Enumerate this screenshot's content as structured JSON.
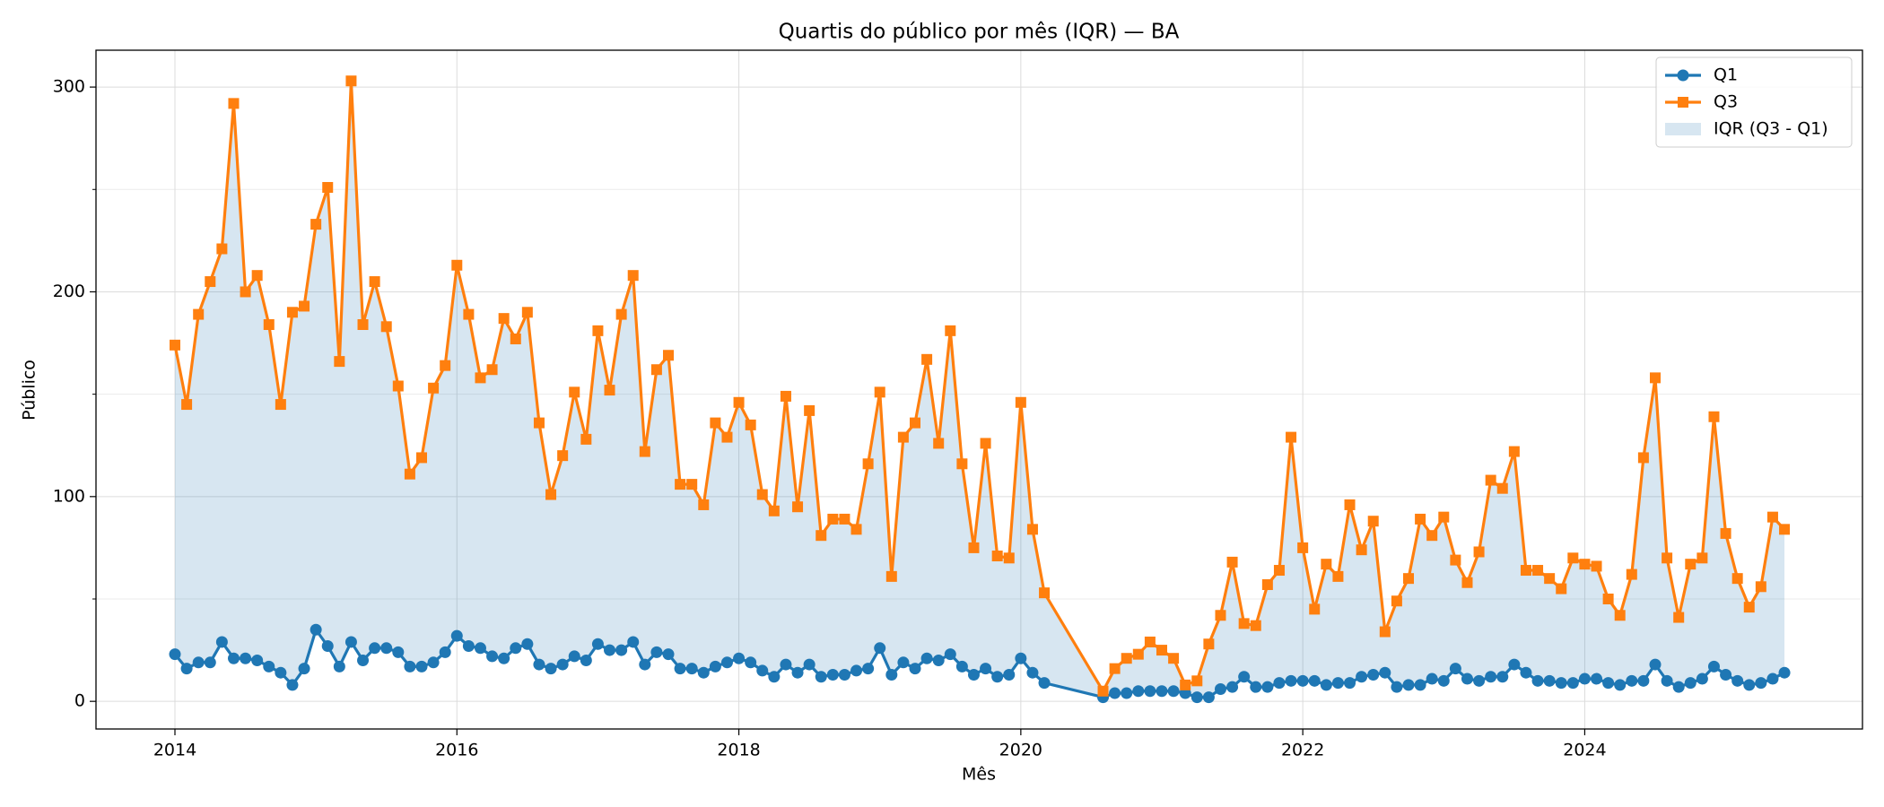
{
  "chart_data": {
    "type": "line",
    "title": "Quartis do público por mês (IQR) — BA",
    "xlabel": "Mês",
    "ylabel": "Público",
    "x": [
      "2014-01",
      "2014-02",
      "2014-03",
      "2014-04",
      "2014-05",
      "2014-06",
      "2014-07",
      "2014-08",
      "2014-09",
      "2014-10",
      "2014-11",
      "2014-12",
      "2015-01",
      "2015-02",
      "2015-03",
      "2015-04",
      "2015-05",
      "2015-06",
      "2015-07",
      "2015-08",
      "2015-09",
      "2015-10",
      "2015-11",
      "2015-12",
      "2016-01",
      "2016-02",
      "2016-03",
      "2016-04",
      "2016-05",
      "2016-06",
      "2016-07",
      "2016-08",
      "2016-09",
      "2016-10",
      "2016-11",
      "2016-12",
      "2017-01",
      "2017-02",
      "2017-03",
      "2017-04",
      "2017-05",
      "2017-06",
      "2017-07",
      "2017-08",
      "2017-09",
      "2017-10",
      "2017-11",
      "2017-12",
      "2018-01",
      "2018-02",
      "2018-03",
      "2018-04",
      "2018-05",
      "2018-06",
      "2018-07",
      "2018-08",
      "2018-09",
      "2018-10",
      "2018-11",
      "2018-12",
      "2019-01",
      "2019-02",
      "2019-03",
      "2019-04",
      "2019-05",
      "2019-06",
      "2019-07",
      "2019-08",
      "2019-09",
      "2019-10",
      "2019-11",
      "2019-12",
      "2020-01",
      "2020-02",
      "2020-03",
      "2020-08",
      "2020-09",
      "2020-10",
      "2020-11",
      "2020-12",
      "2021-01",
      "2021-02",
      "2021-03",
      "2021-04",
      "2021-05",
      "2021-06",
      "2021-07",
      "2021-08",
      "2021-09",
      "2021-10",
      "2021-11",
      "2021-12",
      "2022-01",
      "2022-02",
      "2022-03",
      "2022-04",
      "2022-05",
      "2022-06",
      "2022-07",
      "2022-08",
      "2022-09",
      "2022-10",
      "2022-11",
      "2022-12",
      "2023-01",
      "2023-02",
      "2023-03",
      "2023-04",
      "2023-05",
      "2023-06",
      "2023-07",
      "2023-08",
      "2023-09",
      "2023-10",
      "2023-11",
      "2023-12",
      "2024-01",
      "2024-02",
      "2024-03",
      "2024-04",
      "2024-05",
      "2024-06",
      "2024-07",
      "2024-08",
      "2024-09",
      "2024-10",
      "2024-11",
      "2024-12",
      "2025-01",
      "2025-02",
      "2025-03",
      "2025-04",
      "2025-05",
      "2025-06"
    ],
    "series": [
      {
        "name": "Q1",
        "color": "#1f77b4",
        "marker": "circle",
        "values": [
          23,
          16,
          19,
          19,
          29,
          21,
          21,
          20,
          17,
          14,
          8,
          16,
          35,
          27,
          17,
          29,
          20,
          26,
          26,
          24,
          17,
          17,
          19,
          24,
          32,
          27,
          26,
          22,
          21,
          26,
          28,
          18,
          16,
          18,
          22,
          20,
          28,
          25,
          25,
          29,
          18,
          24,
          23,
          16,
          16,
          14,
          17,
          19,
          21,
          19,
          15,
          12,
          18,
          14,
          18,
          12,
          13,
          13,
          15,
          16,
          26,
          13,
          19,
          16,
          21,
          20,
          23,
          17,
          13,
          16,
          12,
          13,
          21,
          14,
          9,
          2,
          4,
          4,
          5,
          5,
          5,
          5,
          4,
          2,
          2,
          6,
          7,
          12,
          7,
          7,
          9,
          10,
          10,
          10,
          8,
          9,
          9,
          12,
          13,
          14,
          7,
          8,
          8,
          11,
          10,
          16,
          11,
          10,
          12,
          12,
          18,
          14,
          10,
          10,
          9,
          9,
          11,
          11,
          9,
          8,
          10,
          10,
          18,
          10,
          7,
          9,
          11,
          17,
          13,
          10,
          8,
          9,
          11,
          14
        ]
      },
      {
        "name": "Q3",
        "color": "#ff7f0e",
        "marker": "square",
        "values": [
          174,
          145,
          189,
          205,
          221,
          292,
          200,
          208,
          184,
          145,
          190,
          193,
          233,
          251,
          166,
          303,
          184,
          205,
          183,
          154,
          111,
          119,
          153,
          164,
          213,
          189,
          158,
          162,
          187,
          177,
          190,
          136,
          101,
          120,
          151,
          128,
          181,
          152,
          189,
          208,
          122,
          162,
          169,
          106,
          106,
          96,
          136,
          129,
          146,
          135,
          101,
          93,
          149,
          95,
          142,
          81,
          89,
          89,
          84,
          116,
          151,
          61,
          129,
          136,
          167,
          126,
          181,
          116,
          75,
          126,
          71,
          70,
          146,
          84,
          53,
          5,
          16,
          21,
          23,
          29,
          25,
          21,
          8,
          10,
          28,
          42,
          68,
          38,
          37,
          57,
          64,
          129,
          75,
          45,
          67,
          61,
          96,
          74,
          88,
          34,
          49,
          60,
          89,
          81,
          90,
          69,
          58,
          73,
          108,
          104,
          122,
          64,
          64,
          60,
          55,
          70,
          67,
          66,
          50,
          42,
          62,
          119,
          158,
          70,
          41,
          67,
          70,
          139,
          82,
          60,
          46,
          56,
          90,
          84
        ]
      }
    ],
    "fill": {
      "label": "IQR (Q3 - Q1)",
      "color": "#1f77b4"
    },
    "xlim": [
      2013.44,
      2025.97
    ],
    "xticks": [
      2014,
      2016,
      2018,
      2020,
      2022,
      2024
    ],
    "ylim": [
      -13.5,
      318
    ],
    "yticks": [
      0,
      100,
      200,
      300
    ],
    "yminorticks": [
      50,
      150,
      250
    ],
    "grid": true,
    "legend": "upper right"
  }
}
